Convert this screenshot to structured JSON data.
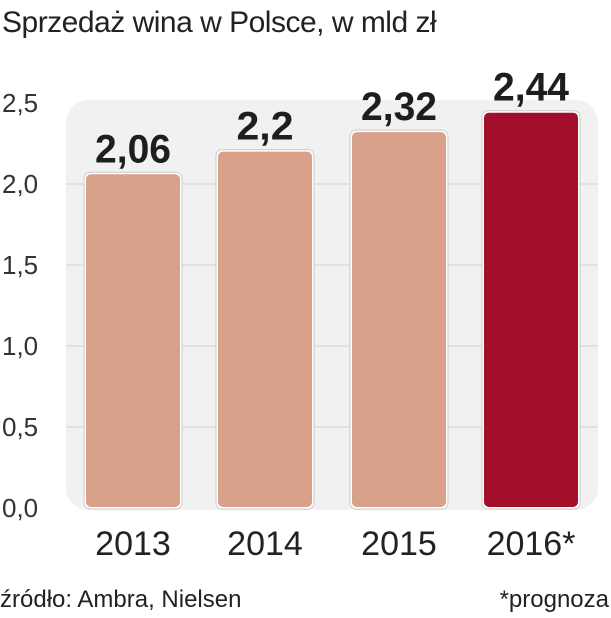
{
  "chart_data": {
    "type": "bar",
    "title": "Sprzedaż wina w Polsce, w mld zł",
    "categories": [
      "2013",
      "2014",
      "2015",
      "2016*"
    ],
    "values": [
      2.06,
      2.2,
      2.32,
      2.44
    ],
    "value_labels": [
      "2,06",
      "2,2",
      "2,32",
      "2,44"
    ],
    "ylim": [
      0,
      2.5
    ],
    "yticks": [
      "0,0",
      "0,5",
      "1,0",
      "1,5",
      "2,0",
      "2,5"
    ],
    "grid": true,
    "colors": [
      "#d9a08a",
      "#d9a08a",
      "#d9a08a",
      "#a30f2b"
    ],
    "source": "źródło: Ambra, Nielsen",
    "footnote": "*prognoza"
  }
}
